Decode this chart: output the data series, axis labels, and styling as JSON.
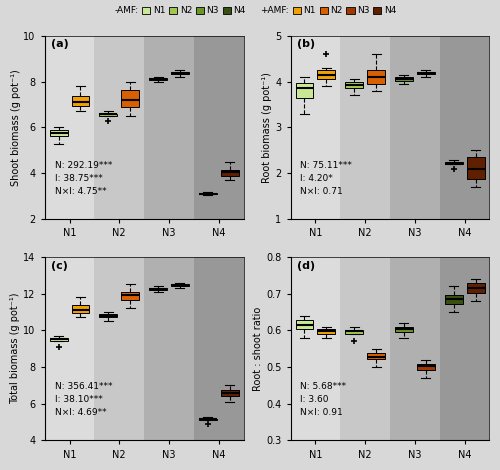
{
  "panel_titles": [
    "(a)",
    "(b)",
    "(c)",
    "(d)"
  ],
  "ylabels": [
    "Shoot biomass (g pot⁻¹)",
    "Root biomass (g pot⁻¹)",
    "Total biomass (g pot⁻¹)",
    "Root : shoot ratio"
  ],
  "n_levels": [
    "N1",
    "N2",
    "N3",
    "N4"
  ],
  "neg_colors": [
    "#c8e896",
    "#a0c850",
    "#6a9628",
    "#385010"
  ],
  "pos_colors": [
    "#f0a000",
    "#d86000",
    "#a03800",
    "#602000"
  ],
  "stats_texts": [
    "N: 292.19***\nI: 38.75***\nN×I: 4.75**",
    "N: 75.11***\nI: 4.20*\nN×I: 0.71",
    "N: 356.41***\nI: 38.10***\nN×I: 4.69**",
    "N: 5.68***\nI: 3.60\nN×I: 0.91"
  ],
  "bg_colors": [
    "#dcdcdc",
    "#c8c8c8",
    "#b0b0b0",
    "#989898"
  ],
  "fig_bg": "#d8d8d8",
  "panel_a": {
    "neg": {
      "N1": [
        5.3,
        5.6,
        5.8,
        5.9,
        6.0,
        5.7
      ],
      "N2": [
        6.3,
        6.5,
        6.6,
        6.7,
        6.6,
        6.55
      ],
      "N3": [
        8.0,
        8.1,
        8.15,
        8.2,
        8.1,
        8.05
      ],
      "N4": [
        3.05,
        3.1,
        3.15,
        3.2,
        3.1,
        3.12
      ]
    },
    "pos": {
      "N1": [
        6.7,
        6.9,
        7.0,
        7.1,
        7.2,
        7.5,
        7.8
      ],
      "N2": [
        6.5,
        7.0,
        7.5,
        7.8,
        8.0,
        7.2,
        6.8
      ],
      "N3": [
        8.2,
        8.3,
        8.4,
        8.5,
        8.35,
        8.45
      ],
      "N4": [
        3.7,
        3.85,
        4.0,
        4.1,
        4.15,
        4.5
      ]
    },
    "ylim": [
      2,
      10
    ],
    "yticks": [
      2,
      4,
      6,
      8,
      10
    ]
  },
  "panel_b": {
    "neg": {
      "N1": [
        3.3,
        3.6,
        3.8,
        4.0,
        4.1,
        3.9
      ],
      "N2": [
        3.7,
        3.9,
        4.0,
        4.05,
        3.95,
        3.85
      ],
      "N3": [
        3.95,
        4.0,
        4.1,
        4.15,
        4.05,
        4.08
      ],
      "N4": [
        2.1,
        2.2,
        2.25,
        2.3,
        2.2,
        2.22
      ]
    },
    "pos": {
      "N1": [
        3.9,
        4.0,
        4.1,
        4.15,
        4.2,
        4.3,
        4.6
      ],
      "N2": [
        3.8,
        3.9,
        4.0,
        4.1,
        4.2,
        4.3,
        4.6
      ],
      "N3": [
        4.1,
        4.15,
        4.2,
        4.25,
        4.2,
        4.18
      ],
      "N4": [
        1.7,
        1.85,
        2.0,
        2.2,
        2.4,
        2.5
      ]
    },
    "ylim": [
      1,
      5
    ],
    "yticks": [
      1,
      2,
      3,
      4,
      5
    ]
  },
  "panel_c": {
    "neg": {
      "N1": [
        9.1,
        9.4,
        9.5,
        9.7,
        9.6,
        9.5
      ],
      "N2": [
        10.5,
        10.7,
        10.9,
        11.0,
        10.8,
        10.75
      ],
      "N3": [
        12.1,
        12.2,
        12.3,
        12.4,
        12.25,
        12.28
      ],
      "N4": [
        4.9,
        5.1,
        5.2,
        5.3,
        5.15,
        5.18
      ]
    },
    "pos": {
      "N1": [
        10.7,
        10.9,
        11.0,
        11.1,
        11.3,
        11.5,
        11.8
      ],
      "N2": [
        11.2,
        11.5,
        11.8,
        12.0,
        12.2,
        11.9,
        12.5
      ],
      "N3": [
        12.3,
        12.4,
        12.5,
        12.6,
        12.45,
        12.55
      ],
      "N4": [
        6.1,
        6.4,
        6.6,
        6.8,
        6.55,
        7.0
      ]
    },
    "ylim": [
      4,
      14
    ],
    "yticks": [
      4,
      6,
      8,
      10,
      12,
      14
    ]
  },
  "panel_d": {
    "neg": {
      "N1": [
        0.58,
        0.6,
        0.62,
        0.64,
        0.61,
        0.63
      ],
      "N2": [
        0.57,
        0.59,
        0.6,
        0.61,
        0.595,
        0.6
      ],
      "N3": [
        0.58,
        0.6,
        0.62,
        0.61,
        0.595,
        0.605
      ],
      "N4": [
        0.65,
        0.67,
        0.7,
        0.72,
        0.68,
        0.69
      ]
    },
    "pos": {
      "N1": [
        0.58,
        0.59,
        0.6,
        0.61,
        0.595,
        0.605
      ],
      "N2": [
        0.5,
        0.52,
        0.54,
        0.55,
        0.53,
        0.525
      ],
      "N3": [
        0.47,
        0.49,
        0.51,
        0.52,
        0.5,
        0.505
      ],
      "N4": [
        0.68,
        0.7,
        0.72,
        0.74,
        0.71,
        0.73
      ]
    },
    "ylim": [
      0.3,
      0.8
    ],
    "yticks": [
      0.3,
      0.4,
      0.5,
      0.6,
      0.7,
      0.8
    ]
  }
}
